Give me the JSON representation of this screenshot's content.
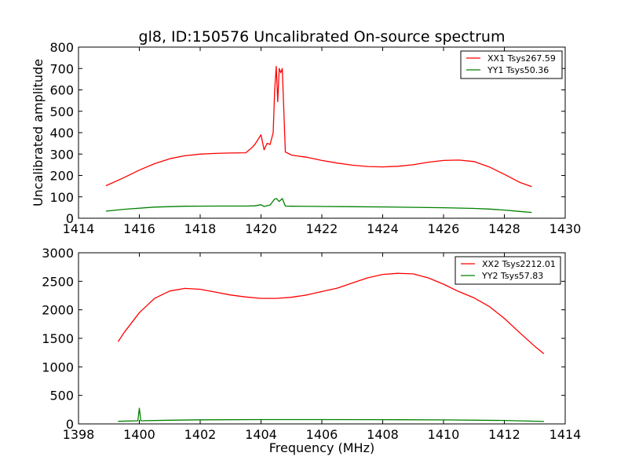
{
  "title": "gl8, ID:150576 Uncalibrated On-source spectrum",
  "chart_data": [
    {
      "type": "line",
      "title": "gl8, ID:150576 Uncalibrated On-source spectrum",
      "xlabel": "",
      "ylabel": "Uncalibrated amplitude",
      "xlim": [
        1414,
        1430
      ],
      "ylim": [
        0,
        800
      ],
      "xticks": [
        1414,
        1416,
        1418,
        1420,
        1422,
        1424,
        1426,
        1428,
        1430
      ],
      "yticks": [
        0,
        100,
        200,
        300,
        400,
        500,
        600,
        700,
        800
      ],
      "legend_position": "top-right",
      "series": [
        {
          "name": "XX1 Tsys267.59",
          "color": "#ff0000",
          "x": [
            1414.9,
            1415.5,
            1416.0,
            1416.5,
            1417.0,
            1417.5,
            1418.0,
            1418.5,
            1419.0,
            1419.5,
            1419.7,
            1419.8,
            1420.0,
            1420.1,
            1420.2,
            1420.3,
            1420.4,
            1420.45,
            1420.5,
            1420.55,
            1420.6,
            1420.65,
            1420.7,
            1420.8,
            1421.0,
            1421.5,
            1422.0,
            1422.5,
            1423.0,
            1423.5,
            1424.0,
            1424.5,
            1425.0,
            1425.5,
            1426.0,
            1426.5,
            1427.0,
            1427.5,
            1428.0,
            1428.5,
            1428.9
          ],
          "y": [
            152,
            190,
            225,
            255,
            278,
            292,
            300,
            303,
            305,
            306,
            330,
            345,
            390,
            320,
            350,
            345,
            400,
            600,
            710,
            545,
            700,
            680,
            700,
            310,
            295,
            285,
            270,
            258,
            248,
            242,
            240,
            243,
            250,
            262,
            270,
            272,
            265,
            240,
            205,
            168,
            148
          ]
        },
        {
          "name": "YY1 Tsys50.36",
          "color": "#008000",
          "x": [
            1414.9,
            1415.5,
            1416.5,
            1417.5,
            1418.5,
            1419.5,
            1419.8,
            1420.0,
            1420.1,
            1420.3,
            1420.45,
            1420.5,
            1420.6,
            1420.7,
            1420.8,
            1421.0,
            1422.0,
            1423.0,
            1424.0,
            1425.0,
            1426.0,
            1427.0,
            1427.5,
            1428.0,
            1428.5,
            1428.9
          ],
          "y": [
            33,
            42,
            52,
            56,
            57,
            57,
            58,
            63,
            55,
            62,
            90,
            92,
            78,
            92,
            57,
            56,
            55,
            54,
            53,
            51,
            49,
            46,
            43,
            38,
            32,
            27
          ]
        }
      ]
    },
    {
      "type": "line",
      "title": "",
      "xlabel": "Frequency (MHz)",
      "ylabel": "",
      "xlim": [
        1398,
        1414
      ],
      "ylim": [
        0,
        3000
      ],
      "xticks": [
        1398,
        1400,
        1402,
        1404,
        1406,
        1408,
        1410,
        1412,
        1414
      ],
      "yticks": [
        0,
        500,
        1000,
        1500,
        2000,
        2500,
        3000
      ],
      "legend_position": "top-right",
      "series": [
        {
          "name": "XX2 Tsys2212.01",
          "color": "#ff0000",
          "x": [
            1399.3,
            1399.5,
            1400.0,
            1400.5,
            1401.0,
            1401.5,
            1402.0,
            1402.5,
            1403.0,
            1403.5,
            1404.0,
            1404.5,
            1405.0,
            1405.5,
            1406.0,
            1406.5,
            1407.0,
            1407.5,
            1408.0,
            1408.5,
            1409.0,
            1409.5,
            1410.0,
            1410.5,
            1411.0,
            1411.5,
            1412.0,
            1412.5,
            1413.0,
            1413.3
          ],
          "y": [
            1440,
            1600,
            1950,
            2200,
            2330,
            2375,
            2360,
            2310,
            2260,
            2225,
            2200,
            2200,
            2220,
            2260,
            2320,
            2380,
            2470,
            2560,
            2620,
            2640,
            2630,
            2560,
            2450,
            2320,
            2210,
            2060,
            1850,
            1600,
            1360,
            1230
          ]
        },
        {
          "name": "YY2 Tsys57.83",
          "color": "#008000",
          "x": [
            1399.3,
            1399.95,
            1400.0,
            1400.05,
            1401.0,
            1402.0,
            1404.0,
            1406.0,
            1408.0,
            1410.0,
            1412.0,
            1413.3
          ],
          "y": [
            45,
            55,
            275,
            55,
            65,
            72,
            75,
            76,
            74,
            70,
            60,
            42
          ]
        }
      ]
    }
  ]
}
